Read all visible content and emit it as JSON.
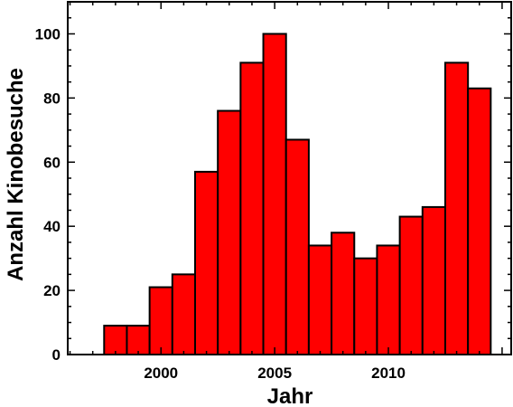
{
  "chart_data": {
    "type": "bar",
    "xlabel": "Jahr",
    "ylabel": "Anzahl Kinobesuche",
    "categories": [
      1998,
      1999,
      2000,
      2001,
      2002,
      2003,
      2004,
      2005,
      2006,
      2007,
      2008,
      2009,
      2010,
      2011,
      2012,
      2013,
      2014
    ],
    "values": [
      9,
      9,
      21,
      25,
      57,
      76,
      91,
      100,
      67,
      34,
      38,
      30,
      34,
      43,
      46,
      91,
      83
    ],
    "xlim": [
      1995.9,
      2015.4
    ],
    "ylim": [
      0,
      110
    ],
    "x_ticks": [
      "2000",
      "2005",
      "2010"
    ],
    "y_ticks": [
      "0",
      "20",
      "40",
      "60",
      "80",
      "100"
    ],
    "bar_color": "#ff0000",
    "edge_color": "#000000",
    "grid": false
  }
}
